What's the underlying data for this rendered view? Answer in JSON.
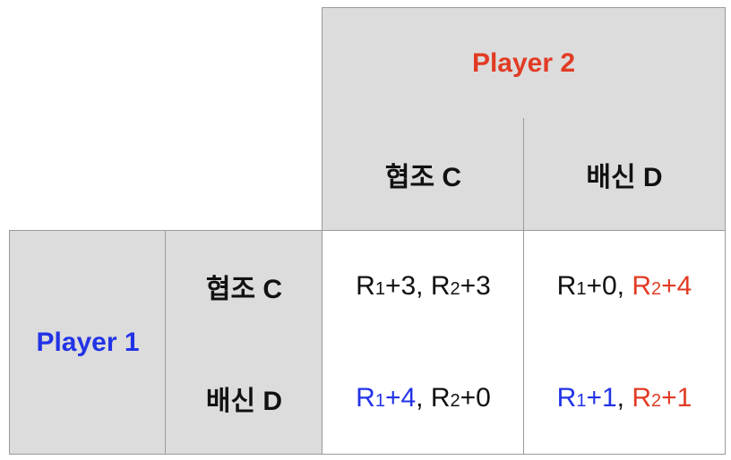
{
  "colors": {
    "player1": "#2233e6",
    "player2": "#e23b24",
    "header_bg": "#dcdcdc",
    "cell_bg": "#ffffff",
    "grid_line": "#9a9a9a"
  },
  "player2": {
    "label": "Player 2",
    "strategies": [
      "협조 C",
      "배신 D"
    ]
  },
  "player1": {
    "label": "Player 1",
    "strategies": [
      "협조 C",
      "배신 D"
    ]
  },
  "payoffs": [
    [
      {
        "r1": {
          "r": "R",
          "sub": "1",
          "delta": "+3",
          "highlight": false
        },
        "sep": ", ",
        "r2": {
          "r": "R",
          "sub": "2",
          "delta": "+3",
          "highlight": false
        }
      },
      {
        "r1": {
          "r": "R",
          "sub": "1",
          "delta": "+0",
          "highlight": false
        },
        "sep": ", ",
        "r2": {
          "r": "R",
          "sub": "2",
          "delta": "+4",
          "highlight": true
        }
      }
    ],
    [
      {
        "r1": {
          "r": "R",
          "sub": "1",
          "delta": "+4",
          "highlight": true
        },
        "sep": ", ",
        "r2": {
          "r": "R",
          "sub": "2",
          "delta": "+0",
          "highlight": false
        }
      },
      {
        "r1": {
          "r": "R",
          "sub": "1",
          "delta": "+1",
          "highlight": true
        },
        "sep": ", ",
        "r2": {
          "r": "R",
          "sub": "2",
          "delta": "+1",
          "highlight": true
        }
      }
    ]
  ]
}
